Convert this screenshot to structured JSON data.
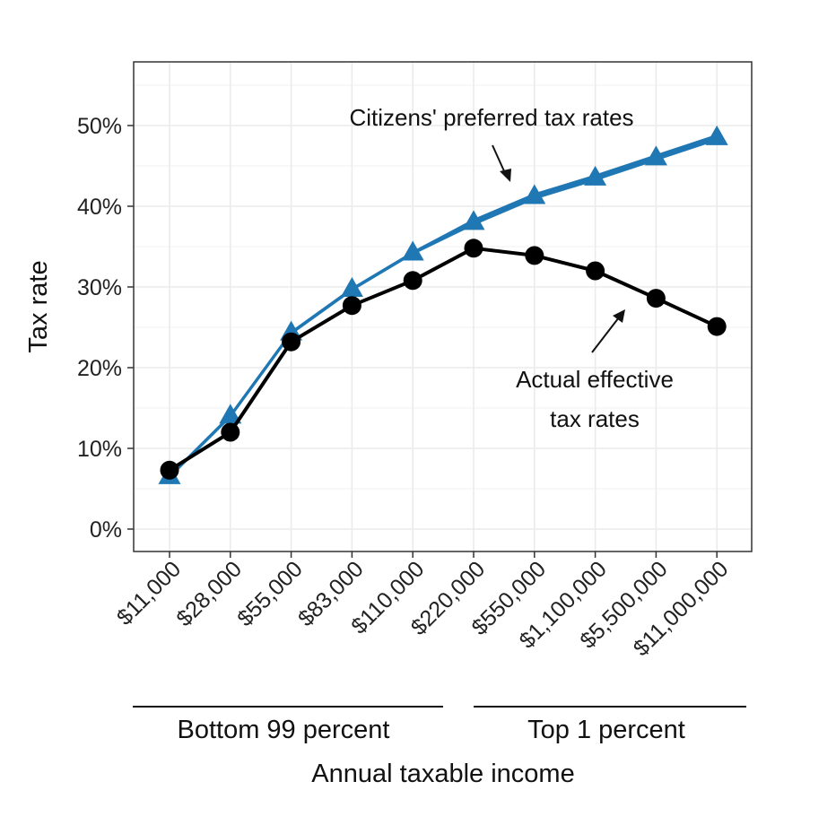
{
  "chart_data": {
    "type": "line",
    "title": "",
    "xlabel": "Annual taxable income",
    "ylabel": "Tax rate",
    "categories": [
      "$11,000",
      "$28,000",
      "$55,000",
      "$83,000",
      "$110,000",
      "$220,000",
      "$550,000",
      "$1,100,000",
      "$5,500,000",
      "$11,000,000"
    ],
    "y_ticks": [
      "0%",
      "10%",
      "20%",
      "30%",
      "40%",
      "50%"
    ],
    "ylim": [
      0,
      55
    ],
    "grid": true,
    "series": [
      {
        "name": "Citizens' preferred tax rates",
        "color": "#1f77b4",
        "marker": "triangle",
        "values": [
          6.5,
          14,
          24.3,
          29.7,
          34.2,
          38,
          41.2,
          43.5,
          46,
          48.5
        ]
      },
      {
        "name": "Actual effective tax rates",
        "color": "#000000",
        "marker": "circle",
        "values": [
          7.3,
          12,
          23.2,
          27.7,
          30.8,
          34.8,
          33.9,
          32,
          28.6,
          25.1
        ]
      }
    ],
    "annotations": {
      "preferred_line1": "Citizens' preferred tax rates",
      "actual_line1": "Actual effective",
      "actual_line2": "tax rates"
    },
    "groups": [
      {
        "label": "Bottom 99 percent"
      },
      {
        "label": "Top 1 percent"
      }
    ]
  }
}
